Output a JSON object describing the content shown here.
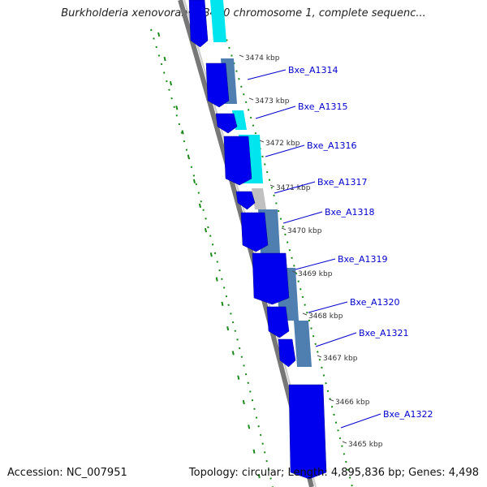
{
  "title": "Burkholderia xenovorans LB400 chromosome 1, complete sequenc...",
  "footer": {
    "accession": "Accession: NC_007951",
    "summary": "Topology: circular; Length: 4,895,836 bp; Genes: 4,498"
  },
  "colors": {
    "gene_forward": "#0000ee",
    "gene_light": "#00e5ee",
    "gene_steel": "#4f7fb0",
    "gene_gray": "#c0c0c0",
    "backbone": "#777777",
    "gc_skew": "#1a8a1a",
    "label_line": "#0000cc",
    "label_text": "#0000cc",
    "tick_text": "#333333"
  },
  "ticks": [
    {
      "label": "3474 kbp"
    },
    {
      "label": "3473 kbp"
    },
    {
      "label": "3472 kbp"
    },
    {
      "label": "3471 kbp"
    },
    {
      "label": "3470 kbp"
    },
    {
      "label": "3469 kbp"
    },
    {
      "label": "3468 kbp"
    },
    {
      "label": "3467 kbp"
    },
    {
      "label": "3466 kbp"
    },
    {
      "label": "3465 kbp"
    }
  ],
  "genes": [
    {
      "label": "Bxe_A1314"
    },
    {
      "label": "Bxe_A1315"
    },
    {
      "label": "Bxe_A1316"
    },
    {
      "label": "Bxe_A1317"
    },
    {
      "label": "Bxe_A1318"
    },
    {
      "label": "Bxe_A1319"
    },
    {
      "label": "Bxe_A1320"
    },
    {
      "label": "Bxe_A1321"
    },
    {
      "label": "Bxe_A1322"
    }
  ]
}
